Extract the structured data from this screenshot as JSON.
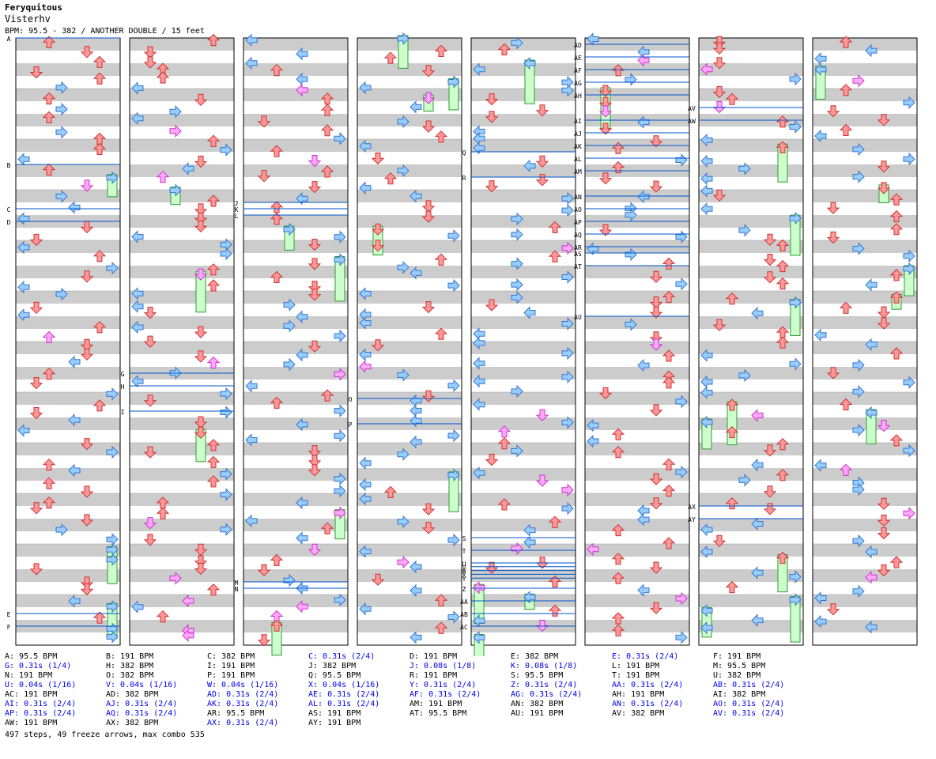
{
  "header": {
    "title": "Feryquitous",
    "subtitle": "Visterhv",
    "info": "BPM: 95.5 - 382 / ANOTHER DOUBLE / 15 feet"
  },
  "columns": [
    {
      "markers": [
        {
          "label": "A",
          "beat": 0
        },
        {
          "label": "B",
          "beat": 10
        },
        {
          "label": "C",
          "beat": 13.5
        },
        {
          "label": "D",
          "beat": 14.5
        },
        {
          "label": "E",
          "beat": 45.5
        },
        {
          "label": "F",
          "beat": 46.5
        }
      ]
    },
    {
      "markers": [
        {
          "label": "G",
          "beat": 26.5
        },
        {
          "label": "H",
          "beat": 27.5
        },
        {
          "label": "I",
          "beat": 29.5
        }
      ]
    },
    {
      "markers": [
        {
          "label": "J",
          "beat": 13
        },
        {
          "label": "K",
          "beat": 13.5
        },
        {
          "label": "L",
          "beat": 14
        },
        {
          "label": "M",
          "beat": 43
        },
        {
          "label": "N",
          "beat": 43.5
        }
      ]
    },
    {
      "markers": [
        {
          "label": "O",
          "beat": 28.5
        },
        {
          "label": "P",
          "beat": 30.5
        }
      ]
    },
    {
      "markers": [
        {
          "label": "Q",
          "beat": 9
        },
        {
          "label": "R",
          "beat": 11
        },
        {
          "label": "S",
          "beat": 39.5
        },
        {
          "label": "T",
          "beat": 40.5
        },
        {
          "label": "U",
          "beat": 41.5
        },
        {
          "label": "V",
          "beat": 41.8
        },
        {
          "label": "W",
          "beat": 42.1
        },
        {
          "label": "X",
          "beat": 42.4
        },
        {
          "label": "Y",
          "beat": 42.7
        },
        {
          "label": "Z",
          "beat": 43.5
        },
        {
          "label": "AA",
          "beat": 44.5
        },
        {
          "label": "AB",
          "beat": 45.5
        },
        {
          "label": "AC",
          "beat": 46.5
        }
      ]
    },
    {
      "markers": [
        {
          "label": "AD",
          "beat": 0.5
        },
        {
          "label": "AE",
          "beat": 1.5
        },
        {
          "label": "AF",
          "beat": 2.5
        },
        {
          "label": "AG",
          "beat": 3.5
        },
        {
          "label": "AH",
          "beat": 4.5
        },
        {
          "label": "AI",
          "beat": 6.5
        },
        {
          "label": "AJ",
          "beat": 7.5
        },
        {
          "label": "AK",
          "beat": 8.5
        },
        {
          "label": "AL",
          "beat": 9.5
        },
        {
          "label": "AM",
          "beat": 10.5
        },
        {
          "label": "AN",
          "beat": 12.5
        },
        {
          "label": "AO",
          "beat": 13.5
        },
        {
          "label": "AP",
          "beat": 14.5
        },
        {
          "label": "AQ",
          "beat": 15.5
        },
        {
          "label": "AR",
          "beat": 16.5
        },
        {
          "label": "AS",
          "beat": 17
        },
        {
          "label": "AT",
          "beat": 18
        },
        {
          "label": "AU",
          "beat": 22
        }
      ]
    },
    {
      "markers": [
        {
          "label": "AV",
          "beat": 5.5
        },
        {
          "label": "AW",
          "beat": 6.5
        },
        {
          "label": "AX",
          "beat": 37
        },
        {
          "label": "AY",
          "beat": 38
        }
      ]
    },
    {
      "markers": []
    }
  ],
  "legend": [
    [
      {
        "t": "A: 95.5 BPM",
        "s": 0
      },
      {
        "t": "G: 0.31s (1/4)",
        "s": 1
      },
      {
        "t": "N: 191 BPM",
        "s": 0
      },
      {
        "t": "U: 0.04s (1/16)",
        "s": 1
      },
      {
        "t": "AC: 191 BPM",
        "s": 0
      },
      {
        "t": "AI: 0.31s (2/4)",
        "s": 1
      },
      {
        "t": "AP: 0.31s (2/4)",
        "s": 1
      },
      {
        "t": "AW: 191 BPM",
        "s": 0
      }
    ],
    [
      {
        "t": "B: 191 BPM",
        "s": 0
      },
      {
        "t": "H: 382 BPM",
        "s": 0
      },
      {
        "t": "O: 382 BPM",
        "s": 0
      },
      {
        "t": "V: 0.04s (1/16)",
        "s": 1
      },
      {
        "t": "AD: 382 BPM",
        "s": 0
      },
      {
        "t": "AJ: 0.31s (2/4)",
        "s": 1
      },
      {
        "t": "AQ: 0.31s (2/4)",
        "s": 1
      },
      {
        "t": "AX: 382 BPM",
        "s": 0
      }
    ],
    [
      {
        "t": "C: 382 BPM",
        "s": 0
      },
      {
        "t": "I: 191 BPM",
        "s": 0
      },
      {
        "t": "P: 191 BPM",
        "s": 0
      },
      {
        "t": "W: 0.04s (1/16)",
        "s": 1
      },
      {
        "t": "AD: 0.31s (2/4)",
        "s": 1
      },
      {
        "t": "AK: 0.31s (2/4)",
        "s": 1
      },
      {
        "t": "AR: 95.5 BPM",
        "s": 0
      },
      {
        "t": "AX: 0.31s (2/4)",
        "s": 1
      }
    ],
    [
      {
        "t": "C: 0.31s (2/4)",
        "s": 1
      },
      {
        "t": "J: 382 BPM",
        "s": 0
      },
      {
        "t": "Q: 95.5 BPM",
        "s": 0
      },
      {
        "t": "X: 0.04s (1/16)",
        "s": 1
      },
      {
        "t": "AE: 0.31s (2/4)",
        "s": 1
      },
      {
        "t": "AL: 0.31s (2/4)",
        "s": 1
      },
      {
        "t": "AS: 191 BPM",
        "s": 0
      },
      {
        "t": "AY: 191 BPM",
        "s": 0
      }
    ],
    [
      {
        "t": "D: 191 BPM",
        "s": 0
      },
      {
        "t": "J: 0.08s (1/8)",
        "s": 1
      },
      {
        "t": "R: 191 BPM",
        "s": 0
      },
      {
        "t": "Y: 0.31s (2/4)",
        "s": 1
      },
      {
        "t": "AF: 0.31s (2/4)",
        "s": 1
      },
      {
        "t": "AM: 191 BPM",
        "s": 0
      },
      {
        "t": "AT: 95.5 BPM",
        "s": 0
      }
    ],
    [
      {
        "t": "E: 382 BPM",
        "s": 0
      },
      {
        "t": "K: 0.08s (1/8)",
        "s": 1
      },
      {
        "t": "S: 95.5 BPM",
        "s": 0
      },
      {
        "t": "Z: 0.31s (2/4)",
        "s": 1
      },
      {
        "t": "AG: 0.31s (2/4)",
        "s": 1
      },
      {
        "t": "AN: 382 BPM",
        "s": 0
      },
      {
        "t": "AU: 191 BPM",
        "s": 0
      }
    ],
    [
      {
        "t": "E: 0.31s (2/4)",
        "s": 1
      },
      {
        "t": "L: 191 BPM",
        "s": 0
      },
      {
        "t": "T: 191 BPM",
        "s": 0
      },
      {
        "t": "AA: 0.31s (2/4)",
        "s": 1
      },
      {
        "t": "AH: 191 BPM",
        "s": 0
      },
      {
        "t": "AN: 0.31s (2/4)",
        "s": 1
      },
      {
        "t": "AV: 382 BPM",
        "s": 0
      }
    ],
    [
      {
        "t": "F: 191 BPM",
        "s": 0
      },
      {
        "t": "M: 95.5 BPM",
        "s": 0
      },
      {
        "t": "U: 382 BPM",
        "s": 0
      },
      {
        "t": "AB: 0.31s (2/4)",
        "s": 1
      },
      {
        "t": "AI: 382 BPM",
        "s": 0
      },
      {
        "t": "AO: 0.31s (2/4)",
        "s": 1
      },
      {
        "t": "AV: 0.31s (2/4)",
        "s": 1
      }
    ]
  ],
  "stats": "497 steps, 49 freeze arrows, max combo 535",
  "colors": {
    "band": "#cccccc",
    "up": "#ff9999",
    "down": "#99ccff",
    "mid": "#ffaaff",
    "freeze": "#ccffcc",
    "marker": "#0055cc"
  }
}
